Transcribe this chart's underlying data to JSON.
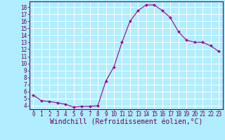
{
  "x": [
    0,
    1,
    2,
    3,
    4,
    5,
    6,
    7,
    8,
    9,
    10,
    11,
    12,
    13,
    14,
    15,
    16,
    17,
    18,
    19,
    20,
    21,
    22,
    23
  ],
  "y": [
    5.5,
    4.7,
    4.6,
    4.4,
    4.2,
    3.8,
    3.9,
    3.9,
    4.0,
    7.5,
    9.5,
    13.0,
    16.0,
    17.5,
    18.3,
    18.3,
    17.5,
    16.5,
    14.5,
    13.3,
    13.0,
    13.0,
    12.5,
    11.7
  ],
  "line_color": "#990099",
  "marker": "D",
  "marker_size": 2.0,
  "bg_color": "#b0eeff",
  "grid_color": "#ffffff",
  "xlabel": "Windchill (Refroidissement éolien,°C)",
  "xlim": [
    -0.5,
    23.5
  ],
  "ylim": [
    3.5,
    18.8
  ],
  "yticks": [
    4,
    5,
    6,
    7,
    8,
    9,
    10,
    11,
    12,
    13,
    14,
    15,
    16,
    17,
    18
  ],
  "xticks": [
    0,
    1,
    2,
    3,
    4,
    5,
    6,
    7,
    8,
    9,
    10,
    11,
    12,
    13,
    14,
    15,
    16,
    17,
    18,
    19,
    20,
    21,
    22,
    23
  ],
  "tick_label_fontsize": 5.5,
  "xlabel_fontsize": 7.0,
  "axis_color": "#660066",
  "spine_color": "#660066",
  "linewidth": 0.8
}
